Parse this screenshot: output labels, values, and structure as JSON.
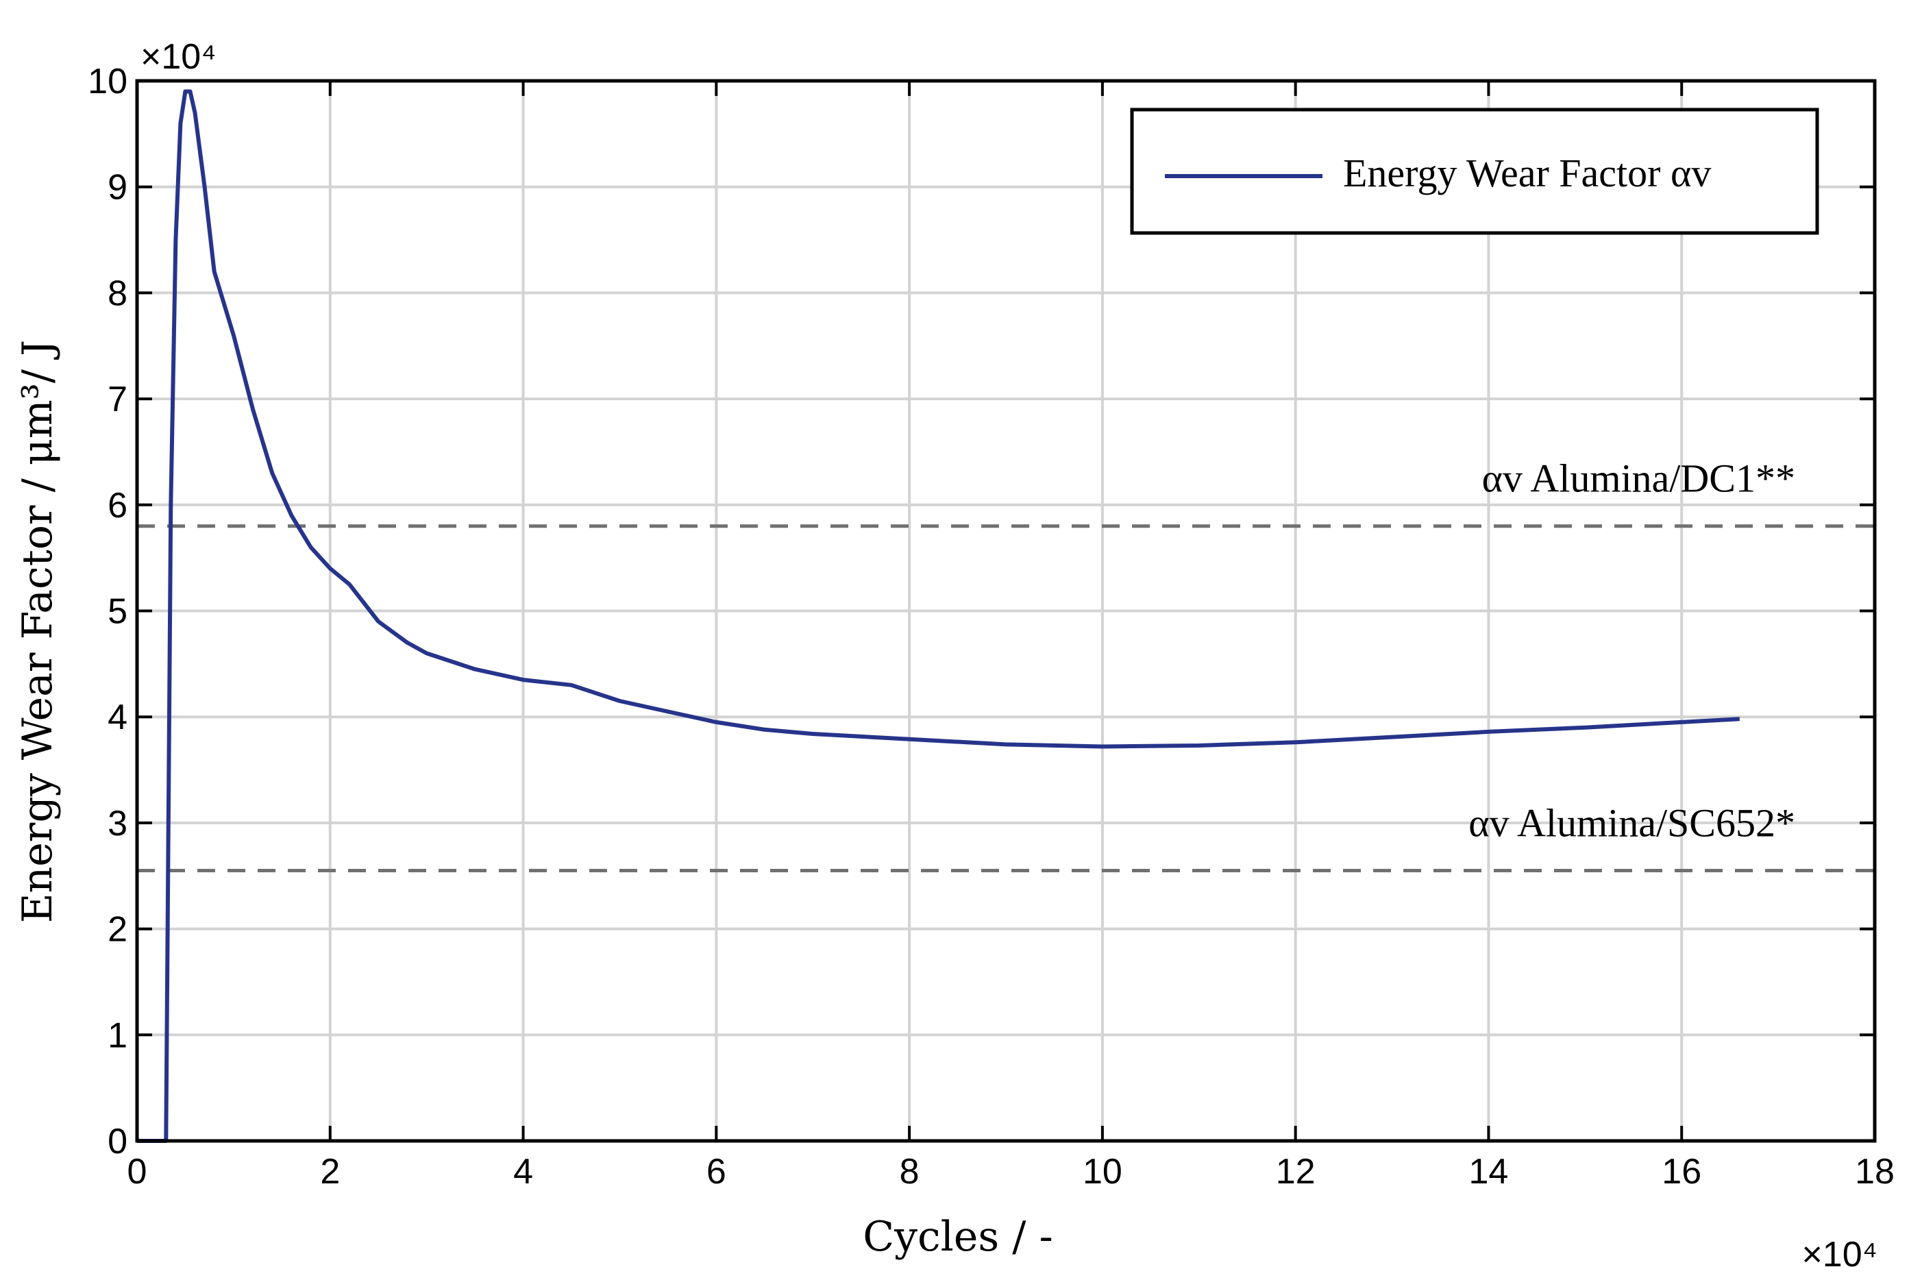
{
  "chart_data": {
    "type": "line",
    "xlabel": "Cycles / -",
    "ylabel": "Energy Wear Factor / μm³/ J",
    "x_multiplier": "×10⁴",
    "y_multiplier": "×10⁴",
    "xlim": [
      0,
      18
    ],
    "ylim": [
      0,
      10
    ],
    "x_ticks": [
      "0",
      "2",
      "4",
      "6",
      "8",
      "10",
      "12",
      "14",
      "16",
      "18"
    ],
    "y_ticks": [
      "0",
      "1",
      "2",
      "3",
      "4",
      "5",
      "6",
      "7",
      "8",
      "9",
      "10"
    ],
    "grid": true,
    "legend_position": "top-right",
    "series": [
      {
        "name": "Energy Wear Factor αv",
        "color": "#27348b",
        "x": [
          0,
          0.3,
          0.35,
          0.4,
          0.45,
          0.5,
          0.55,
          0.6,
          0.7,
          0.8,
          1.0,
          1.2,
          1.4,
          1.6,
          1.8,
          2.0,
          2.2,
          2.5,
          2.8,
          3.0,
          3.5,
          4.0,
          4.5,
          5.0,
          5.5,
          6.0,
          6.5,
          7.0,
          8.0,
          9.0,
          10.0,
          11.0,
          12.0,
          13.0,
          14.0,
          15.0,
          16.0,
          16.6
        ],
        "y": [
          0,
          0,
          6.0,
          8.5,
          9.6,
          9.9,
          9.9,
          9.7,
          9.0,
          8.2,
          7.6,
          6.9,
          6.3,
          5.9,
          5.6,
          5.4,
          5.25,
          4.9,
          4.7,
          4.6,
          4.45,
          4.35,
          4.3,
          4.15,
          4.05,
          3.95,
          3.88,
          3.84,
          3.79,
          3.74,
          3.72,
          3.73,
          3.76,
          3.81,
          3.86,
          3.9,
          3.95,
          3.98
        ]
      }
    ],
    "reference_lines": [
      {
        "label": "αv Alumina/DC1**",
        "y": 5.8,
        "color": "#707070",
        "style": "dashed"
      },
      {
        "label": "αv Alumina/SC652*",
        "y": 2.55,
        "color": "#707070",
        "style": "dashed"
      }
    ]
  }
}
